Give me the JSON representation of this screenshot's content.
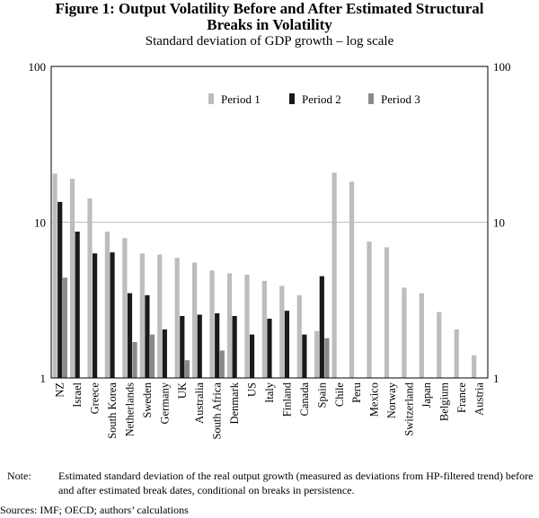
{
  "chart_data": {
    "type": "bar",
    "title_line1": "Figure 1: Output Volatility Before and After Estimated Structural",
    "title_line2": "Breaks in Volatility",
    "subtitle": "Standard deviation of GDP growth – log scale",
    "scale": "log",
    "ylim": [
      1,
      100
    ],
    "y_ticks": [
      "1",
      "10",
      "100"
    ],
    "grid": "horizontal at 10",
    "legend_position": "top-right",
    "categories": [
      "NZ",
      "Israel",
      "Greece",
      "South Korea",
      "Netherlands",
      "Sweden",
      "Germany",
      "UK",
      "Australia",
      "South Africa",
      "Denmark",
      "US",
      "Italy",
      "Finland",
      "Canada",
      "Spain",
      "Chile",
      "Peru",
      "Mexico",
      "Norway",
      "Switzerland",
      "Japan",
      "Belgium",
      "France",
      "Austria"
    ],
    "series": [
      {
        "name": "Period 1",
        "color": "#bdbdbd",
        "values": [
          20.5,
          19,
          14.2,
          8.7,
          7.9,
          6.3,
          6.2,
          5.9,
          5.5,
          4.9,
          4.7,
          4.6,
          4.2,
          3.9,
          3.4,
          2.0,
          20.8,
          18.2,
          7.5,
          6.9,
          3.8,
          3.5,
          2.65,
          2.05,
          1.4
        ]
      },
      {
        "name": "Period 2",
        "color": "#1a1a1a",
        "values": [
          13.5,
          8.7,
          6.3,
          6.4,
          3.5,
          3.4,
          2.05,
          2.5,
          2.55,
          2.6,
          2.5,
          1.9,
          2.4,
          2.7,
          1.9,
          4.5,
          null,
          null,
          null,
          null,
          null,
          null,
          null,
          null,
          null
        ]
      },
      {
        "name": "Period 3",
        "color": "#8a8a8a",
        "values": [
          4.4,
          null,
          null,
          null,
          1.7,
          1.9,
          null,
          1.3,
          null,
          1.5,
          null,
          null,
          null,
          null,
          null,
          1.8,
          null,
          null,
          null,
          null,
          null,
          null,
          null,
          null,
          null
        ]
      }
    ]
  },
  "note": {
    "label": "Note:",
    "text": "Estimated standard deviation of the real output growth (measured as deviations from HP-filtered trend) before and after estimated break dates, conditional on breaks in persistence."
  },
  "sources": "Sources: IMF; OECD; authors’ calculations"
}
